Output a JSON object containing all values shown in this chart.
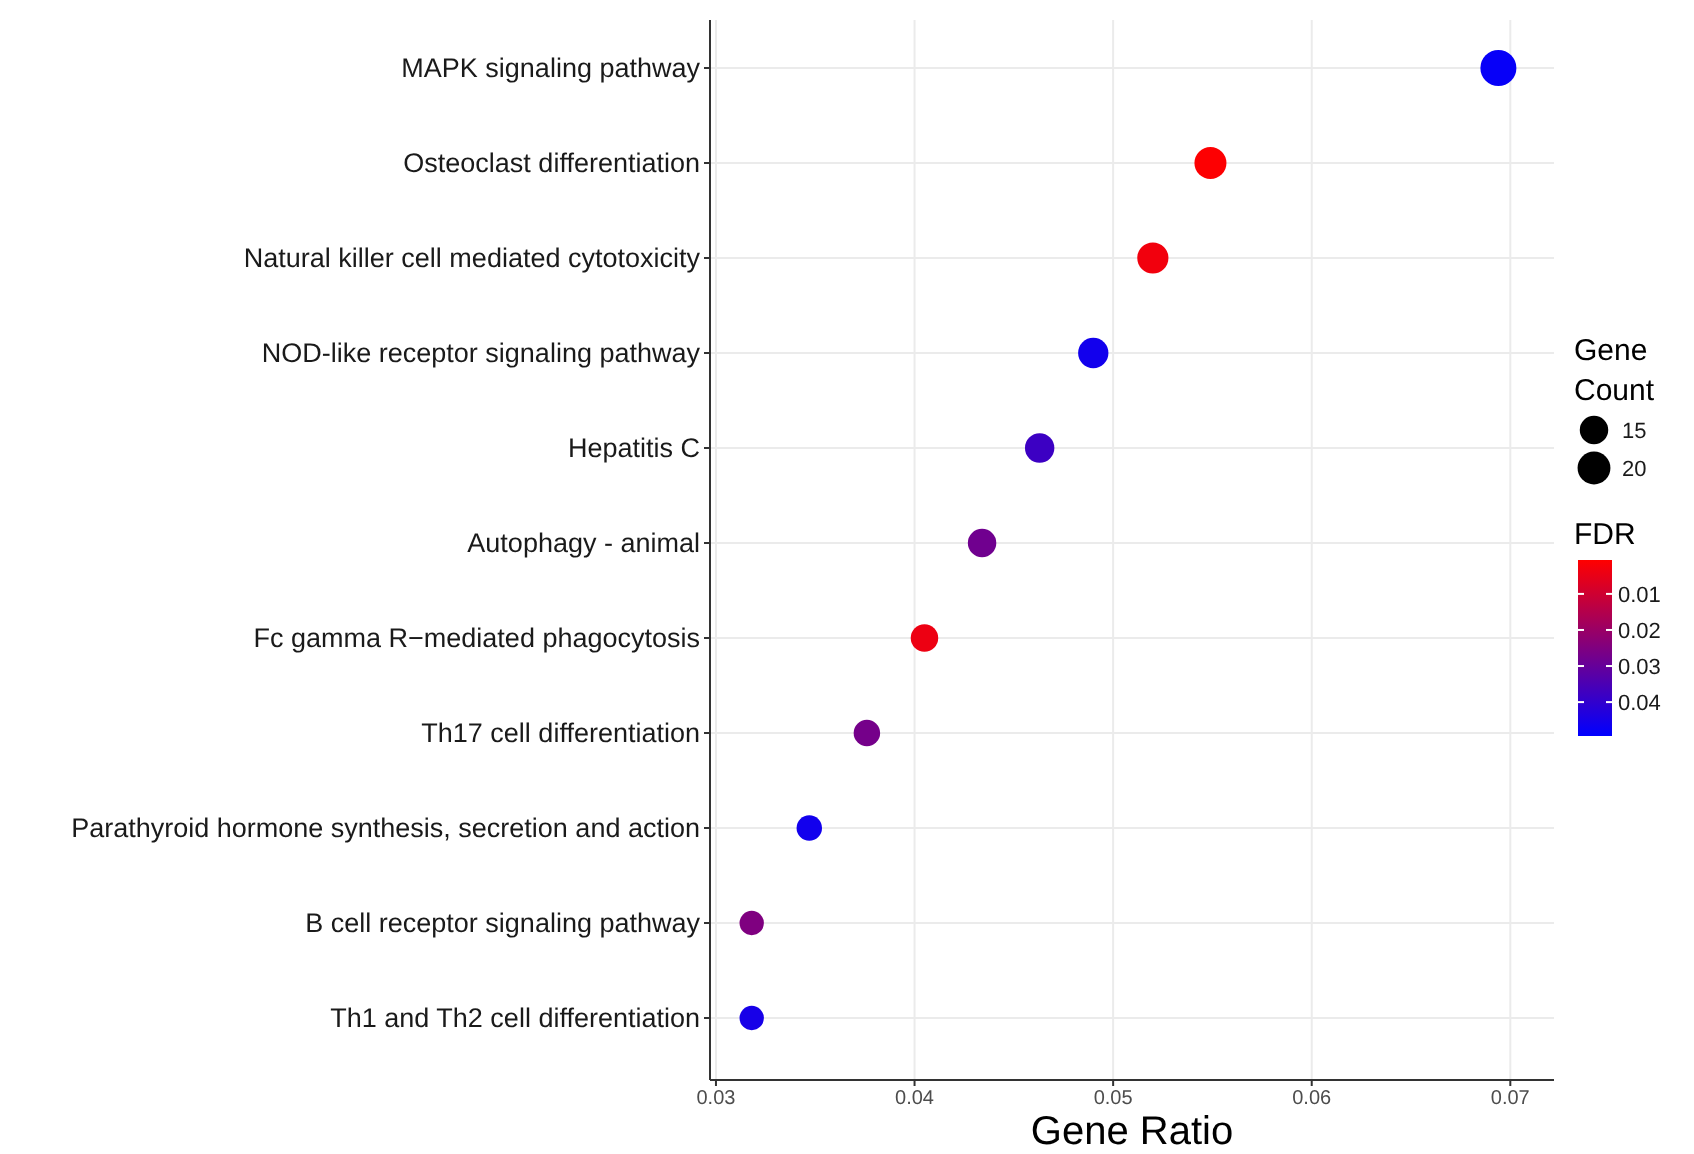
{
  "chart_data": {
    "type": "bubble",
    "orientation": "horizontal",
    "xlabel": "Gene Ratio",
    "legend_title": "Gene Count",
    "clabel": "FDR",
    "categories": [
      "MAPK signaling pathway",
      "Osteoclast differentiation",
      "Natural killer cell mediated cytotoxicity",
      "NOD-like receptor signaling pathway",
      "Hepatitis C",
      "Autophagy - animal",
      "Fc gamma R−mediated phagocytosis",
      "Th17 cell differentiation",
      "Parathyroid hormone synthesis, secretion and action",
      "B cell receptor signaling pathway",
      "Th1 and Th2 cell differentiation"
    ],
    "values": [
      0.0694,
      0.0549,
      0.052,
      0.049,
      0.0463,
      0.0434,
      0.0405,
      0.0376,
      0.0347,
      0.0318,
      0.0318
    ],
    "sizes": [
      24,
      19,
      18,
      17,
      16,
      15,
      14,
      13,
      12,
      11,
      11
    ],
    "size_legend": [
      15,
      20
    ],
    "cvalues": [
      0.048,
      0.001,
      0.003,
      0.046,
      0.038,
      0.028,
      0.004,
      0.027,
      0.046,
      0.025,
      0.045
    ],
    "clim": [
      0.0006,
      0.0494
    ],
    "cticks": [
      0.01,
      0.02,
      0.03,
      0.04
    ],
    "xlim": [
      0.0297,
      0.0722
    ],
    "xticks": [
      0.03,
      0.04,
      0.05,
      0.06,
      0.07
    ],
    "grid": true
  }
}
